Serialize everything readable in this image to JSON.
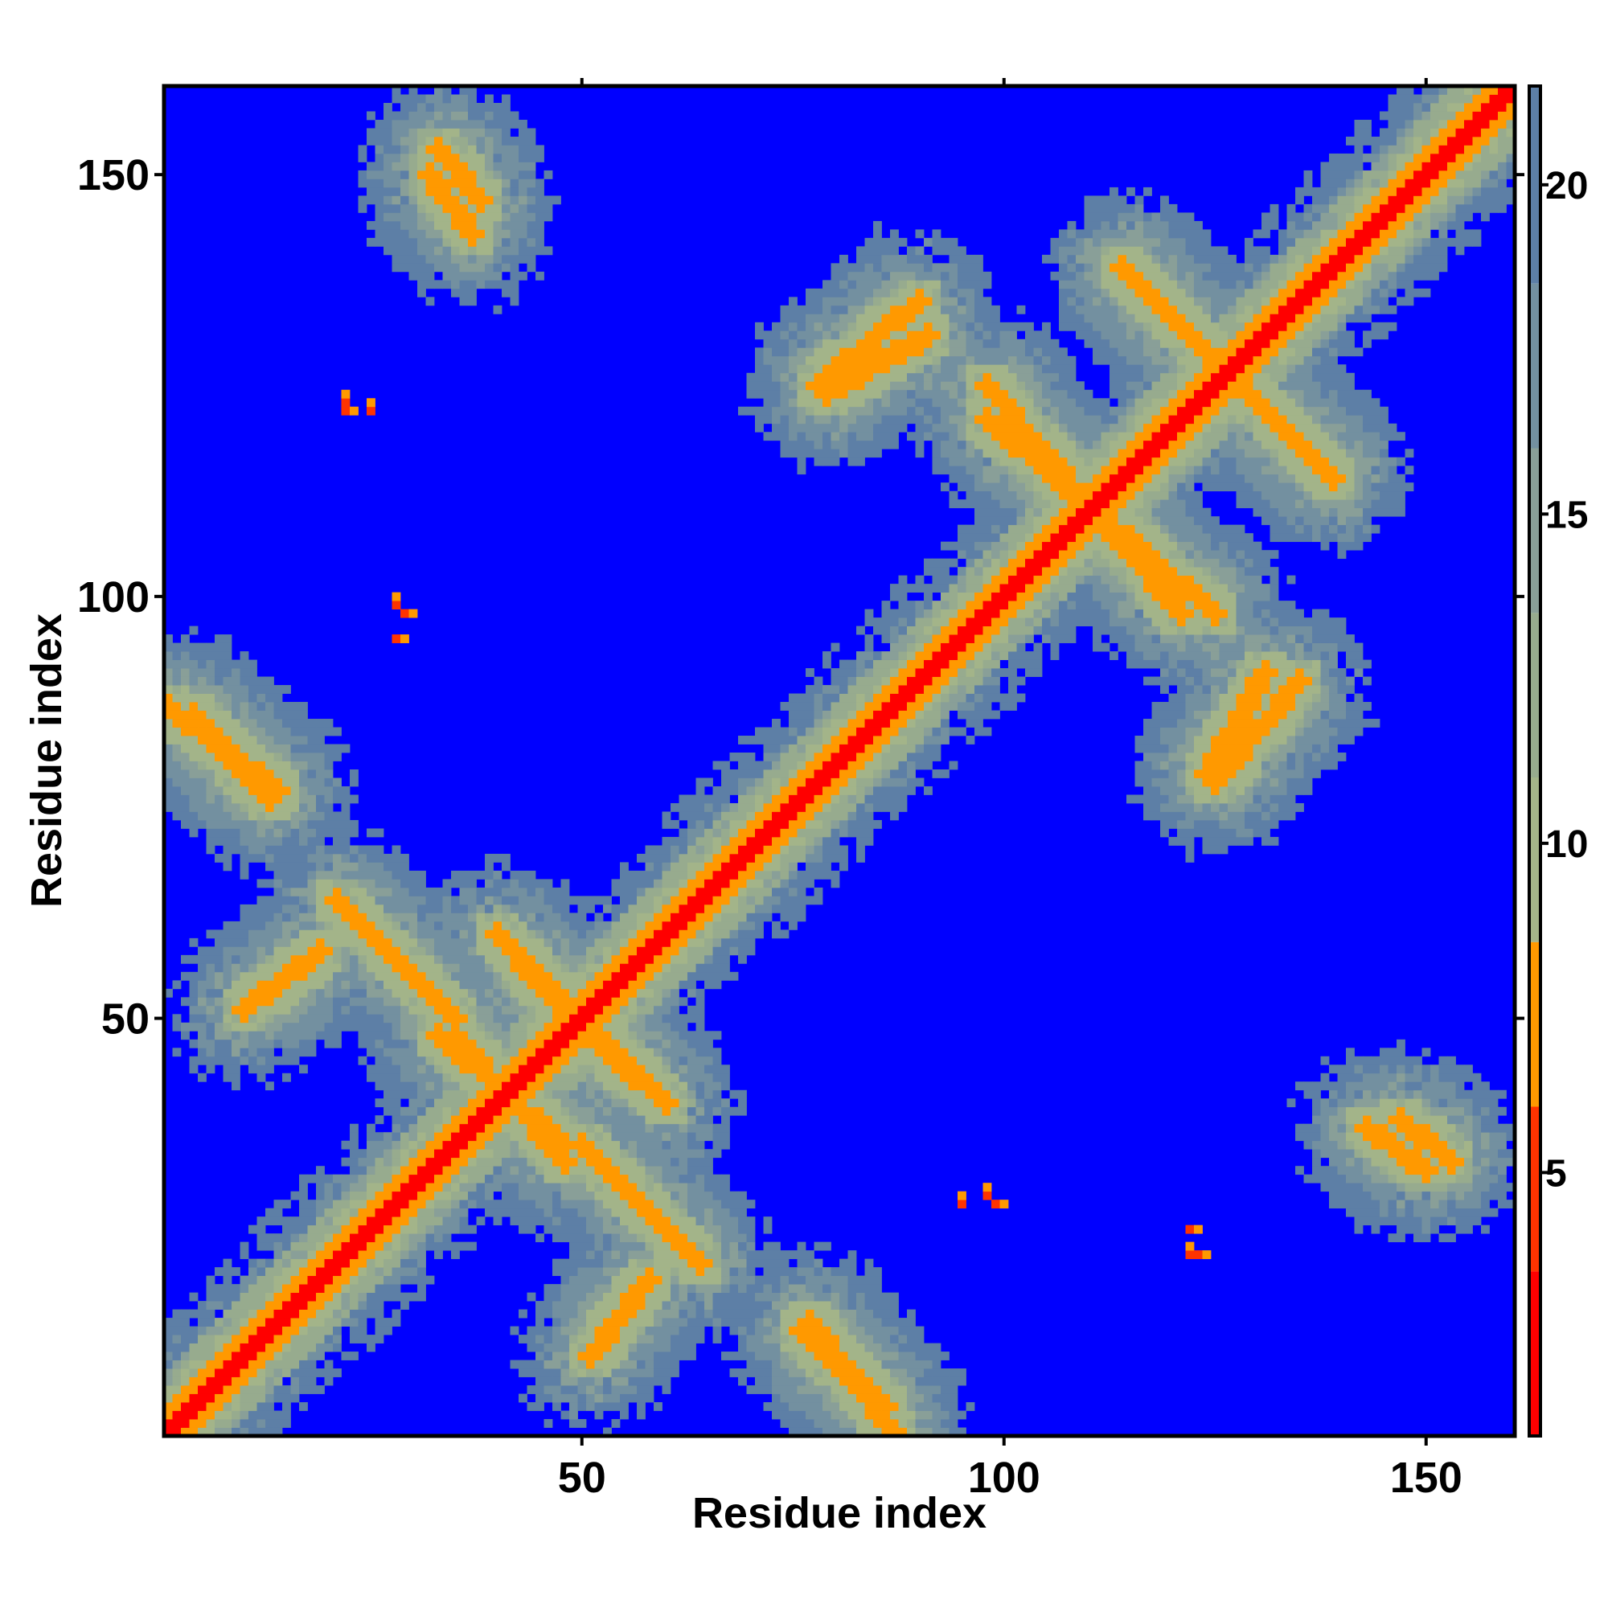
{
  "chart_data": {
    "type": "heatmap",
    "title": "",
    "xlabel": "Residue index",
    "ylabel": "Residue index",
    "n_residues": 160,
    "xlim": [
      1,
      160
    ],
    "ylim": [
      1,
      160
    ],
    "x_ticks": [
      50,
      100,
      150
    ],
    "y_ticks": [
      50,
      100,
      150
    ],
    "colorbar": {
      "ticks": [
        5,
        10,
        15,
        20
      ],
      "range": [
        1,
        21.5
      ],
      "bands": [
        {
          "from": 1,
          "to": 3.5,
          "color": "#ff0000"
        },
        {
          "from": 3.5,
          "to": 6,
          "color": "#ff3300"
        },
        {
          "from": 6,
          "to": 8.5,
          "color": "#ff9900"
        },
        {
          "from": 8.5,
          "to": 11,
          "color": "#a3b489"
        },
        {
          "from": 11,
          "to": 13.5,
          "color": "#97ab8e"
        },
        {
          "from": 13.5,
          "to": 16,
          "color": "#899f98"
        },
        {
          "from": 16,
          "to": 18.5,
          "color": "#7390a0"
        },
        {
          "from": 18.5,
          "to": 21.5,
          "color": "#5d7fa6"
        }
      ]
    },
    "colors": {
      "far": "#0000ff",
      "diagonal": "#ff0000",
      "close": "#ff9900",
      "mid": "#a3b489",
      "outer": "#7b95a1"
    },
    "features": [
      {
        "kind": "helix_pair",
        "i_start": 21,
        "i_end": 35,
        "j_start": 64,
        "j_end": 50
      },
      {
        "kind": "helix_pair",
        "i_start": 43,
        "i_end": 60,
        "j_start": 56,
        "j_end": 40
      },
      {
        "kind": "helix_pair",
        "i_start": 35,
        "i_end": 48,
        "j_start": 48,
        "j_end": 33
      },
      {
        "kind": "helix_pair",
        "i_start": 1,
        "i_end": 14,
        "j_start": 87,
        "j_end": 77
      },
      {
        "kind": "helix_pair",
        "i_start": 51,
        "i_end": 58,
        "j_start": 10,
        "j_end": 19
      },
      {
        "kind": "helix_pair",
        "i_start": 76,
        "i_end": 86,
        "j_start": 13,
        "j_end": 4
      },
      {
        "kind": "helix_pair",
        "i_start": 33,
        "i_end": 38,
        "j_start": 153,
        "j_end": 147
      },
      {
        "kind": "helix_pair",
        "i_start": 79,
        "i_end": 91,
        "j_start": 124,
        "j_end": 131
      },
      {
        "kind": "helix_pair",
        "i_start": 98,
        "i_end": 125,
        "j_start": 121,
        "j_end": 98
      },
      {
        "kind": "helix_pair",
        "i_start": 114,
        "i_end": 139,
        "j_start": 139,
        "j_end": 114
      },
      {
        "kind": "helix_pair",
        "i_start": 125,
        "i_end": 135,
        "j_start": 78,
        "j_end": 90
      },
      {
        "kind": "helix_pair",
        "i_start": 143,
        "i_end": 150,
        "j_start": 37,
        "j_end": 32
      },
      {
        "kind": "point",
        "i": 22,
        "j": 123
      },
      {
        "kind": "point",
        "i": 25,
        "j": 122
      },
      {
        "kind": "point",
        "i": 28,
        "j": 99
      },
      {
        "kind": "point",
        "i": 95,
        "j": 28
      },
      {
        "kind": "point",
        "i": 98,
        "j": 29
      },
      {
        "kind": "point",
        "i": 122,
        "j": 22
      }
    ]
  }
}
